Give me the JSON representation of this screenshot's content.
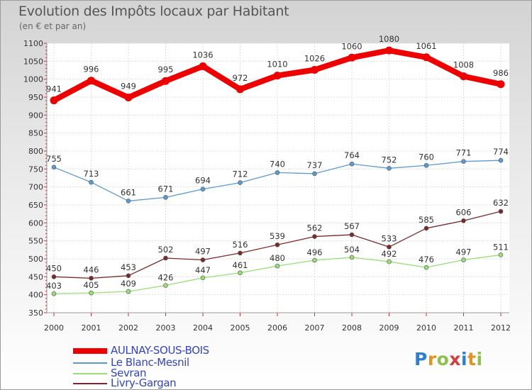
{
  "title": "Evolution des Impôts locaux par Habitant",
  "subtitle": "(en € et par an)",
  "logo": {
    "text": "Proxiti",
    "colors": [
      "#2f7fd0",
      "#e8911c",
      "#8bc34a",
      "#d63c3c",
      "#2f7fd0",
      "#e8911c",
      "#8bc34a"
    ]
  },
  "chart_data": {
    "type": "line",
    "x": [
      "2000",
      "2001",
      "2002",
      "2003",
      "2004",
      "2005",
      "2006",
      "2007",
      "2008",
      "2009",
      "2010",
      "2011",
      "2012"
    ],
    "ylim": [
      350,
      1100
    ],
    "yticks": [
      350,
      400,
      450,
      500,
      550,
      600,
      650,
      700,
      750,
      800,
      850,
      900,
      950,
      1000,
      1050,
      1100
    ],
    "grid": true,
    "legend_position": "bottom-left",
    "series": [
      {
        "name": "AULNAY-SOUS-BOIS",
        "color": "#ee0000",
        "values": [
          941,
          996,
          949,
          995,
          1036,
          972,
          1010,
          1026,
          1060,
          1080,
          1061,
          1008,
          986
        ]
      },
      {
        "name": "Le Blanc-Mesnil",
        "color": "#5c9bd1",
        "values": [
          755,
          713,
          661,
          671,
          694,
          712,
          740,
          737,
          764,
          752,
          760,
          771,
          774
        ]
      },
      {
        "name": "Sevran",
        "color": "#99dd77",
        "values": [
          403,
          405,
          409,
          426,
          447,
          461,
          480,
          496,
          504,
          492,
          476,
          497,
          511
        ]
      },
      {
        "name": "Livry-Gargan",
        "color": "#7a2a2a",
        "values": [
          450,
          446,
          453,
          502,
          497,
          516,
          539,
          562,
          567,
          533,
          585,
          606,
          632
        ]
      }
    ]
  }
}
